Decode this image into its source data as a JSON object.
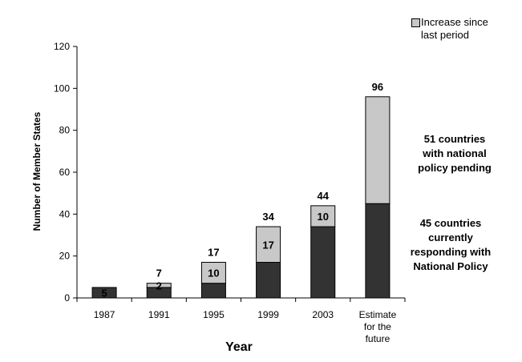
{
  "chart_data": {
    "type": "bar",
    "stacked": true,
    "categories": [
      "1987",
      "1991",
      "1995",
      "1999",
      "2003",
      "Estimate for the future"
    ],
    "series": [
      {
        "name": "",
        "color": "#333333",
        "values": [
          5,
          5,
          7,
          17,
          34,
          45
        ]
      },
      {
        "name": "Increase since last period",
        "color": "#c8c8c8",
        "values": [
          0,
          2,
          10,
          17,
          10,
          51
        ]
      }
    ],
    "segment_labels": [
      [
        "5",
        ""
      ],
      [
        "",
        "2"
      ],
      [
        "",
        "10"
      ],
      [
        "",
        "17"
      ],
      [
        "",
        "10"
      ],
      [
        "",
        ""
      ]
    ],
    "totals": [
      5,
      7,
      17,
      34,
      44,
      96
    ],
    "total_labels": [
      "",
      "7",
      "17",
      "34",
      "44",
      "96"
    ],
    "xlabel": "Year",
    "ylabel": "Number of Member States",
    "ylim": [
      0,
      120
    ],
    "yticks": [
      0,
      20,
      40,
      60,
      80,
      100,
      120
    ],
    "category_label_lines": [
      [
        "1987"
      ],
      [
        "1991"
      ],
      [
        "1995"
      ],
      [
        "1999"
      ],
      [
        "2003"
      ],
      [
        "Estimate",
        "for the",
        "future"
      ]
    ],
    "legend": {
      "position": "top-right",
      "entries": [
        "Increase since last period"
      ],
      "entry_lines": [
        "Increase since",
        "last period"
      ]
    },
    "annotations": [
      {
        "lines": [
          "51 countries",
          "with national",
          "policy pending"
        ]
      },
      {
        "lines": [
          "45 countries",
          "currently",
          "responding with",
          "National Policy"
        ]
      }
    ],
    "grid": false
  }
}
